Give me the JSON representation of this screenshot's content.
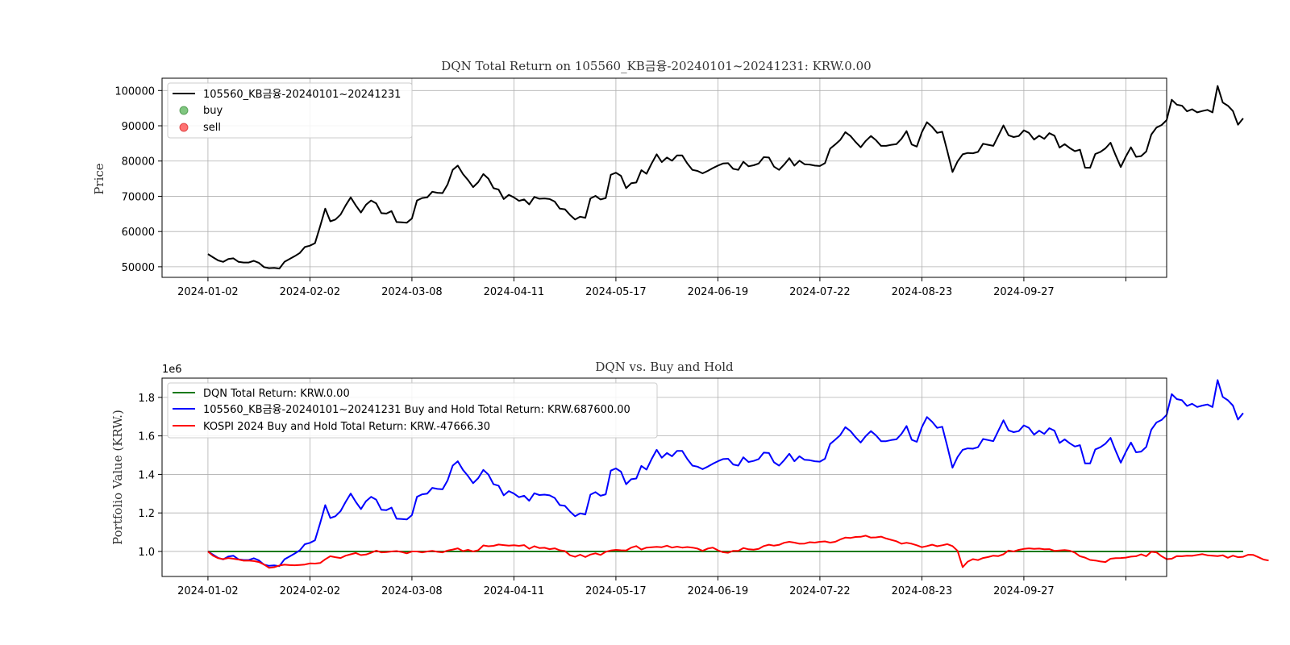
{
  "charts": [
    {
      "title": "DQN Total Return on 105560_KB금융-20240101~20241231: KRW.0.00",
      "ylabel": "Price",
      "legend": [
        "105560_KB금융-20240101~20241231",
        "buy",
        "sell"
      ]
    },
    {
      "title": "DQN vs. Buy and Hold",
      "ylabel": "Portfolio Value (KRW.)",
      "y_offset_text": "1e6",
      "legend": [
        "DQN Total Return: KRW.0.00",
        "105560_KB금융-20240101~20241231 Buy and Hold Total Return: KRW.687600.00",
        "KOSPI 2024 Buy and Hold Total Return: KRW.-47666.30"
      ]
    }
  ],
  "chart_data": [
    {
      "type": "line",
      "title": "DQN Total Return on 105560_KB금융-20240101~20241231: KRW.0.00",
      "xlabel": "",
      "ylabel": "Price",
      "x_tick_labels": [
        "2024-01-02",
        "2024-02-02",
        "2024-03-08",
        "2024-04-11",
        "2024-05-17",
        "2024-06-19",
        "2024-07-22",
        "2024-08-23",
        "2024-09-27",
        ""
      ],
      "x_tick_index": [
        0,
        20,
        40,
        60,
        80,
        100,
        120,
        140,
        160,
        180
      ],
      "xlim": [
        -9,
        188
      ],
      "ylim": [
        47000,
        103500
      ],
      "y_ticks": [
        50000,
        60000,
        70000,
        80000,
        90000,
        100000
      ],
      "grid": true,
      "legend_position": "upper left",
      "series": [
        {
          "name": "105560_KB금융-20240101~20241231",
          "color": "#000000",
          "values": [
            53600,
            52700,
            51800,
            51400,
            52200,
            52400,
            51400,
            51200,
            51200,
            51700,
            51100,
            49900,
            49600,
            49700,
            49500,
            51400,
            52200,
            53000,
            53900,
            55600,
            56000,
            56700,
            61500,
            66500,
            62900,
            63400,
            64800,
            67400,
            69700,
            67400,
            65400,
            67600,
            68800,
            68000,
            65200,
            65100,
            65800,
            62700,
            62600,
            62500,
            63700,
            68800,
            69500,
            69700,
            71300,
            71000,
            70900,
            73400,
            77500,
            78700,
            76300,
            74600,
            72600,
            74000,
            76300,
            75000,
            72300,
            71900,
            69200,
            70400,
            69700,
            68700,
            69100,
            67700,
            69800,
            69300,
            69400,
            69200,
            68500,
            66500,
            66300,
            64700,
            63400,
            64200,
            63900,
            69400,
            70100,
            69100,
            69500,
            76100,
            76700,
            75800,
            72300,
            73700,
            73900,
            77400,
            76400,
            79300,
            81900,
            79700,
            81000,
            80100,
            81600,
            81600,
            79300,
            77500,
            77200,
            76500,
            77200,
            78000,
            78700,
            79300,
            79400,
            77800,
            77500,
            79800,
            78500,
            78800,
            79300,
            81100,
            81000,
            78400,
            77500,
            79000,
            80800,
            78700,
            80100,
            79100,
            79000,
            78700,
            78600,
            79400,
            83500,
            84700,
            86000,
            88200,
            87100,
            85400,
            83900,
            85700,
            87100,
            85900,
            84300,
            84300,
            84600,
            84800,
            86300,
            88500,
            84700,
            84100,
            88200,
            91000,
            89700,
            88000,
            88300,
            82800,
            76900,
            79900,
            81900,
            82300,
            82200,
            82600,
            84900,
            84600,
            84300,
            87200,
            90100,
            87300,
            86800,
            87100,
            88700,
            88000,
            86100,
            87200,
            86300,
            87900,
            87200,
            83800,
            84800,
            83700,
            82800,
            83200,
            78100,
            78100,
            82000,
            82600,
            83600,
            85200,
            81600,
            78300,
            81300,
            83900,
            81200,
            81400,
            82700,
            87500,
            89500,
            90200,
            91600,
            97400,
            96000,
            95700,
            94100,
            94700,
            93800,
            94200,
            94500,
            93800,
            101300,
            96600,
            95700,
            94200,
            90300,
            92100
          ]
        },
        {
          "name": "buy",
          "color": "#2ca02c",
          "values": []
        },
        {
          "name": "sell",
          "color": "#ff0000",
          "values": []
        }
      ]
    },
    {
      "type": "line",
      "title": "DQN vs. Buy and Hold",
      "xlabel": "",
      "ylabel": "Portfolio Value (KRW.)",
      "y_scale_note": "1e6",
      "x_tick_labels": [
        "2024-01-02",
        "2024-02-02",
        "2024-03-08",
        "2024-04-11",
        "2024-05-17",
        "2024-06-19",
        "2024-07-22",
        "2024-08-23",
        "2024-09-27",
        ""
      ],
      "x_tick_index": [
        0,
        20,
        40,
        60,
        80,
        100,
        120,
        140,
        160,
        180
      ],
      "xlim": [
        -9,
        188
      ],
      "ylim": [
        0.87,
        1.9
      ],
      "y_ticks": [
        1.0,
        1.2,
        1.4,
        1.6,
        1.8
      ],
      "grid": true,
      "legend_position": "upper left",
      "series": [
        {
          "name": "DQN Total Return: KRW.0.00",
          "color": "#1a7a1a",
          "values": [
            1.0,
            1.0
          ]
        },
        {
          "name": "105560_KB금융-20240101~20241231 Buy and Hold Total Return: KRW.687600.00",
          "color": "#0000ff",
          "values": "price_ratio"
        },
        {
          "name": "KOSPI 2024 Buy and Hold Total Return: KRW.-47666.30",
          "color": "#ff0000",
          "values": [
            1.0,
            0.978,
            0.965,
            0.96,
            0.966,
            0.962,
            0.958,
            0.952,
            0.953,
            0.95,
            0.945,
            0.932,
            0.915,
            0.918,
            0.927,
            0.931,
            0.929,
            0.928,
            0.93,
            0.932,
            0.938,
            0.937,
            0.94,
            0.959,
            0.975,
            0.97,
            0.966,
            0.978,
            0.985,
            0.992,
            0.981,
            0.984,
            0.993,
            1.004,
            0.995,
            0.997,
            1.0,
            1.002,
            0.997,
            0.99,
            1.0,
            1.0,
            0.995,
            1.0,
            1.003,
            0.998,
            0.995,
            1.005,
            1.01,
            1.016,
            1.002,
            1.008,
            1.0,
            1.006,
            1.031,
            1.027,
            1.029,
            1.036,
            1.033,
            1.03,
            1.032,
            1.029,
            1.033,
            1.014,
            1.027,
            1.018,
            1.019,
            1.012,
            1.016,
            1.006,
            1.002,
            0.98,
            0.972,
            0.983,
            0.971,
            0.984,
            0.99,
            0.982,
            0.998,
            1.005,
            1.008,
            1.006,
            1.005,
            1.02,
            1.028,
            1.01,
            1.02,
            1.022,
            1.024,
            1.022,
            1.03,
            1.02,
            1.025,
            1.02,
            1.023,
            1.02,
            1.015,
            1.003,
            1.015,
            1.02,
            1.006,
            0.996,
            0.993,
            1.003,
            1.003,
            1.018,
            1.011,
            1.009,
            1.013,
            1.028,
            1.035,
            1.03,
            1.034,
            1.045,
            1.05,
            1.046,
            1.04,
            1.041,
            1.048,
            1.046,
            1.05,
            1.052,
            1.046,
            1.05,
            1.062,
            1.072,
            1.07,
            1.075,
            1.076,
            1.082,
            1.072,
            1.073,
            1.077,
            1.067,
            1.06,
            1.053,
            1.04,
            1.045,
            1.04,
            1.032,
            1.022,
            1.028,
            1.035,
            1.027,
            1.032,
            1.038,
            1.028,
            1.003,
            0.918,
            0.947,
            0.96,
            0.955,
            0.966,
            0.971,
            0.978,
            0.976,
            0.985,
            1.005,
            1.0,
            1.008,
            1.013,
            1.016,
            1.013,
            1.015,
            1.011,
            1.012,
            1.003,
            1.005,
            1.007,
            1.004,
            0.994,
            0.975,
            0.968,
            0.956,
            0.953,
            0.948,
            0.945,
            0.962,
            0.965,
            0.966,
            0.968,
            0.973,
            0.975,
            0.985,
            0.975,
            0.998,
            0.995,
            0.975,
            0.96,
            0.962,
            0.976,
            0.975,
            0.978,
            0.977,
            0.982,
            0.986,
            0.98,
            0.978,
            0.976,
            0.98,
            0.967,
            0.978,
            0.97,
            0.972,
            0.983,
            0.982,
            0.97,
            0.958,
            0.953
          ]
        }
      ]
    }
  ]
}
